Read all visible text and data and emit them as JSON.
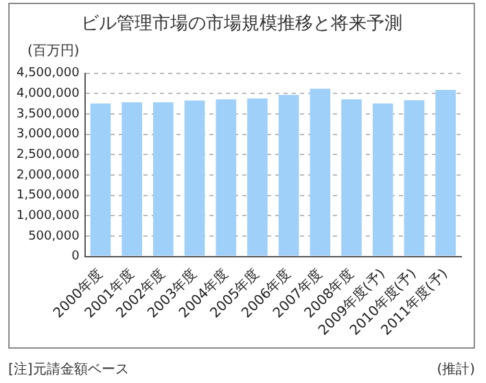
{
  "chart_data": {
    "type": "bar",
    "title": "ビル管理市場の市場規模推移と将来予測",
    "ylabel": "(百万円)",
    "categories": [
      "2000年度",
      "2001年度",
      "2002年度",
      "2003年度",
      "2004年度",
      "2005年度",
      "2006年度",
      "2007年度",
      "2008年度",
      "2009年度(予)",
      "2010年度(予)",
      "2011年度(予)"
    ],
    "values": [
      3760000,
      3790000,
      3790000,
      3830000,
      3860000,
      3880000,
      3970000,
      4120000,
      3860000,
      3760000,
      3840000,
      4090000
    ],
    "color": "#9fd0fa",
    "ylim": [
      0,
      4500000
    ],
    "yticks": [
      0,
      {
        "value": 500000,
        "label": "500,000"
      },
      {
        "value": 1000000,
        "label": "1,000,000"
      },
      {
        "value": 1500000,
        "label": "1,500,000"
      },
      {
        "value": 2000000,
        "label": "2,000,000"
      },
      {
        "value": 2500000,
        "label": "2,500,000"
      },
      {
        "value": 3000000,
        "label": "3,000,000"
      },
      {
        "value": 3500000,
        "label": "3,500,000"
      },
      {
        "value": 4000000,
        "label": "4,000,000"
      },
      {
        "value": 4500000,
        "label": "4,500,000"
      }
    ],
    "grid": "y",
    "annotations": [
      "[注]元請金額ベース",
      "(推計)"
    ]
  }
}
